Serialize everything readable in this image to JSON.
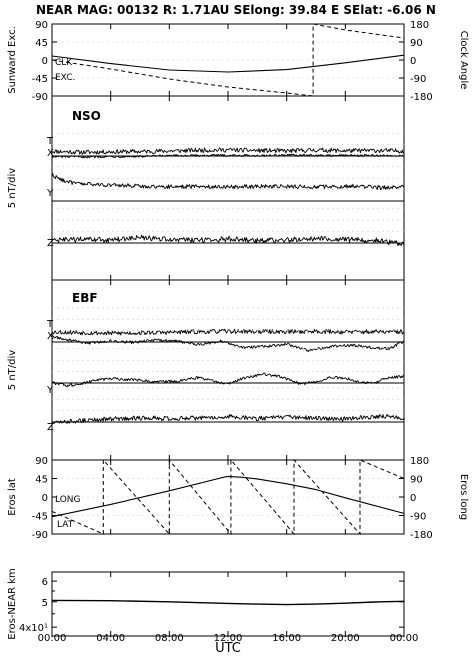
{
  "title": {
    "text": "NEAR MAG: 00132  R: 1.71AU  SElong:   39.84 E  SElat:   -6.06 N"
  },
  "x_axis": {
    "label": "UTC",
    "ticks": [
      "00:00",
      "04:00",
      "08:00",
      "12:00",
      "16:00",
      "20:00",
      "00:00"
    ],
    "tick_hours": [
      0,
      4,
      8,
      12,
      16,
      20,
      24
    ]
  },
  "chart_data": [
    {
      "id": "angles",
      "type": "line",
      "ylabel_left": "Sunward Exc.",
      "ylabel_right": "Clock Angle",
      "yticks_left": [
        "90",
        "45",
        "0",
        "-45",
        "-90"
      ],
      "yticks_right": [
        "180",
        "90",
        "0",
        "-90",
        "-180"
      ],
      "ylim_left": [
        -90,
        90
      ],
      "ylim_right": [
        -180,
        180
      ],
      "annotations": [
        "CLK",
        "EXC."
      ],
      "series": [
        {
          "style": "solid",
          "x": [
            0,
            4,
            8,
            12,
            16,
            20,
            24
          ],
          "y": [
            10,
            -9,
            -25,
            -30,
            -24,
            -7,
            12
          ]
        },
        {
          "style": "dashed",
          "x": [
            0,
            4,
            8,
            12,
            16,
            17.8,
            17.8,
            20,
            24
          ],
          "y": [
            0,
            -45,
            -95,
            -135,
            -165,
            -180,
            180,
            150,
            110
          ]
        }
      ]
    },
    {
      "id": "nso",
      "type": "line",
      "panel_label": "NSO",
      "ylabel": "5 nT/div",
      "components": [
        {
          "label": "T",
          "x": [
            0,
            2,
            4,
            6,
            8,
            10,
            12,
            14,
            16,
            18,
            20,
            22,
            24
          ],
          "y": [
            2.2,
            1.7,
            1.9,
            2.0,
            2.3,
            2.6,
            2.8,
            2.5,
            2.3,
            2.7,
            2.4,
            2.5,
            2.3
          ],
          "noise": 1.0
        },
        {
          "label": "X",
          "x": [
            0,
            2,
            4,
            6,
            8,
            10,
            12,
            14,
            16,
            18,
            20,
            22,
            24
          ],
          "y": [
            -0.3,
            -0.4,
            -0.2,
            -0.2,
            0.1,
            0.2,
            0.3,
            0.2,
            0.4,
            0.2,
            0.3,
            0.2,
            0.1
          ],
          "noise": 0.5
        },
        {
          "label": "Y",
          "x": [
            0,
            0.5,
            1.5,
            3,
            5,
            7,
            9,
            12,
            15,
            18,
            21,
            22.5,
            23.5,
            24
          ],
          "y": [
            12,
            10,
            8,
            7.5,
            7,
            6.5,
            6.6,
            6.5,
            6.7,
            6.4,
            6.8,
            6.0,
            6.4,
            6.6
          ],
          "noise": 0.9
        },
        {
          "label": "Z",
          "x": [
            0,
            2,
            4,
            6,
            8,
            10,
            12,
            14,
            16,
            18,
            20,
            22,
            23,
            24
          ],
          "y": [
            1.2,
            1.6,
            1.4,
            2.4,
            1.6,
            1.2,
            1.8,
            1.0,
            1.4,
            2.2,
            1.6,
            1.3,
            0.4,
            -0.6
          ],
          "noise": 1.2
        }
      ]
    },
    {
      "id": "ebf",
      "type": "line",
      "panel_label": "EBF",
      "ylabel": "5 nT/div",
      "components": [
        {
          "label": "T",
          "x": [
            0,
            2,
            4,
            6,
            8,
            10,
            12,
            14,
            16,
            18,
            20,
            22,
            24
          ],
          "y": [
            2.3,
            2.0,
            1.7,
            1.9,
            2.1,
            2.4,
            2.6,
            2.5,
            2.4,
            2.6,
            2.3,
            2.4,
            2.3
          ],
          "noise": 1.0
        },
        {
          "label": "X",
          "x": [
            0,
            1,
            2.5,
            4,
            5.5,
            7,
            8.5,
            10,
            11.5,
            13,
            14.5,
            16,
            17.5,
            19,
            20.5,
            22,
            23,
            24
          ],
          "y": [
            2.5,
            1.0,
            -0.5,
            0.5,
            -0.2,
            0.8,
            0.5,
            -1.2,
            0.5,
            -2.5,
            -2.0,
            -1.0,
            -4.0,
            -2.0,
            -1.5,
            -2.6,
            -3.0,
            0.3
          ],
          "noise": 0.6
        },
        {
          "label": "Y",
          "x": [
            0,
            1,
            2,
            3,
            4,
            5.5,
            7,
            8.5,
            10,
            11,
            12,
            13,
            14.5,
            15.5,
            17,
            18,
            19,
            20,
            21,
            22,
            22.5,
            23,
            24
          ],
          "y": [
            0.2,
            -1.2,
            -0.3,
            1.2,
            2.0,
            1.6,
            0.6,
            0.8,
            2.5,
            0.8,
            -0.5,
            2.2,
            4.0,
            3.0,
            -0.5,
            0.5,
            2.6,
            2.2,
            0.5,
            -0.2,
            1.5,
            2.5,
            3.0
          ],
          "noise": 0.6
        },
        {
          "label": "Z",
          "x": [
            0,
            2,
            4,
            6,
            8,
            10,
            12,
            14,
            16,
            18,
            20,
            22,
            23,
            24
          ],
          "y": [
            -0.4,
            0.6,
            1.4,
            1.8,
            1.6,
            1.8,
            2.5,
            1.6,
            2.2,
            1.8,
            1.4,
            2.4,
            2.8,
            1.8
          ],
          "noise": 1.0
        }
      ]
    },
    {
      "id": "eros-angles",
      "type": "line",
      "ylabel_left": "Eros lat",
      "ylabel_right": "Eros long",
      "yticks_left": [
        "90",
        "45",
        "0",
        "-45",
        "-90"
      ],
      "yticks_right": [
        "180",
        "90",
        "0",
        "-90",
        "-180"
      ],
      "ylim_left": [
        -90,
        90
      ],
      "ylim_right": [
        -180,
        180
      ],
      "annotations": [
        "LONG",
        "LAT"
      ],
      "series": [
        {
          "style": "solid",
          "x": [
            0,
            4,
            8,
            11.8,
            12,
            13,
            14,
            16,
            18,
            20,
            24
          ],
          "y": [
            -48,
            -18,
            15,
            49,
            50,
            48,
            44,
            32,
            18,
            -2,
            -40
          ]
        },
        {
          "style": "dashed",
          "x": [
            0,
            3.5,
            3.5,
            8,
            8,
            12.2,
            12.2,
            16.5,
            16.5,
            21,
            21,
            24
          ],
          "y": [
            -70,
            -180,
            180,
            -180,
            180,
            -180,
            180,
            -180,
            180,
            -180,
            180,
            90
          ]
        }
      ]
    },
    {
      "id": "distance",
      "type": "line",
      "ylabel": "Eros-NEAR km",
      "yscale": "log",
      "yticks": [
        "6",
        "5",
        "4x10¹"
      ],
      "ylim": [
        37,
        65
      ],
      "series": [
        {
          "style": "solid",
          "x": [
            0,
            4,
            8,
            12,
            14,
            16,
            18,
            20,
            22,
            24
          ],
          "y": [
            50.6,
            50.5,
            50.0,
            49.3,
            49.0,
            48.8,
            49.0,
            49.4,
            49.9,
            50.2
          ]
        }
      ]
    }
  ]
}
